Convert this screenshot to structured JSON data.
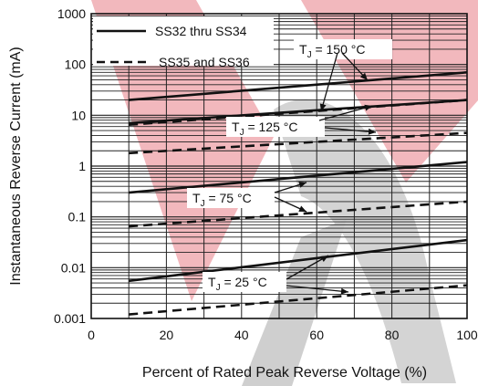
{
  "chart_data": {
    "type": "line",
    "xlabel": "Percent of Rated Peak Reverse Voltage (%)",
    "ylabel": "Instantaneous Reverse Current (mA)",
    "xlim": [
      0,
      100
    ],
    "ylim": [
      0.001,
      1000
    ],
    "yscale": "log",
    "grid": true,
    "x_ticks": [
      "0",
      "20",
      "40",
      "60",
      "80",
      "100"
    ],
    "y_ticks": [
      "0.001",
      "0.01",
      "0.1",
      "1",
      "10",
      "100",
      "1000"
    ],
    "legend": {
      "placement": "top-left",
      "entries": [
        {
          "label": "SS32 thru SS34",
          "style": "solid"
        },
        {
          "label": "SS35 and SS36",
          "style": "dashed"
        }
      ]
    },
    "annotations": [
      {
        "label": "T",
        "sub": "J",
        "suffix": " = 150 °C"
      },
      {
        "label": "T",
        "sub": "J",
        "suffix": " = 125 °C"
      },
      {
        "label": "T",
        "sub": "J",
        "suffix": " = 75 °C"
      },
      {
        "label": "T",
        "sub": "J",
        "suffix": " = 25 °C"
      }
    ],
    "series": [
      {
        "group": "SS32 thru SS34",
        "temperature": "150 °C",
        "style": "solid",
        "x": [
          10,
          100
        ],
        "y": [
          20,
          70
        ]
      },
      {
        "group": "SS35 and SS36",
        "temperature": "150 °C",
        "style": "dashed",
        "x": [
          10,
          100
        ],
        "y": [
          6.5,
          20
        ]
      },
      {
        "group": "SS32 thru SS34",
        "temperature": "125 °C",
        "style": "solid",
        "x": [
          10,
          100
        ],
        "y": [
          7,
          20
        ]
      },
      {
        "group": "SS35 and SS36",
        "temperature": "125 °C",
        "style": "dashed",
        "x": [
          10,
          100
        ],
        "y": [
          1.8,
          4.5
        ]
      },
      {
        "group": "SS32 thru SS34",
        "temperature": "75 °C",
        "style": "solid",
        "x": [
          10,
          100
        ],
        "y": [
          0.3,
          1.2
        ]
      },
      {
        "group": "SS35 and SS36",
        "temperature": "75 °C",
        "style": "dashed",
        "x": [
          10,
          100
        ],
        "y": [
          0.065,
          0.2
        ]
      },
      {
        "group": "SS32 thru SS34",
        "temperature": "25 °C",
        "style": "solid",
        "x": [
          10,
          100
        ],
        "y": [
          0.0055,
          0.035
        ]
      },
      {
        "group": "SS35 and SS36",
        "temperature": "25 °C",
        "style": "dashed",
        "x": [
          10,
          100
        ],
        "y": [
          0.0012,
          0.0045
        ]
      }
    ],
    "colors": {
      "line": "#111111",
      "grid": "#222222",
      "watermark_red": "#f2b8bd",
      "watermark_gray": "#cfcfcf"
    }
  }
}
